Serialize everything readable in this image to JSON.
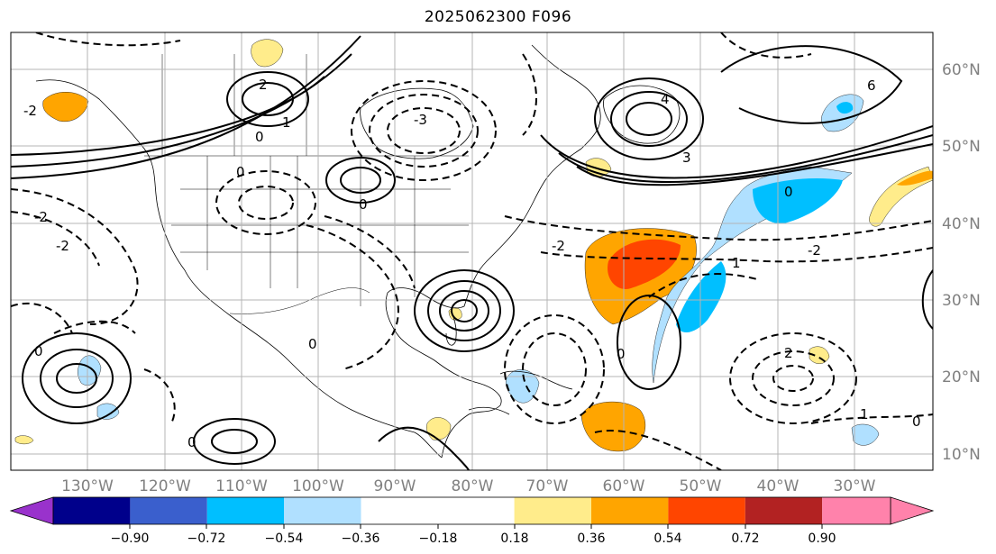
{
  "title": "2025062300 F096",
  "map": {
    "projection": "PlateCarree",
    "lon_range": [
      -140,
      5
    ],
    "lat_range": [
      7,
      65
    ],
    "gridlines": true
  },
  "axes": {
    "lon_ticks": [
      "130°W",
      "120°W",
      "110°W",
      "100°W",
      "90°W",
      "80°W",
      "70°W",
      "60°W",
      "50°W",
      "40°W",
      "30°W"
    ],
    "lat_ticks": [
      "60°N",
      "50°N",
      "40°N",
      "30°N",
      "20°N",
      "10°N"
    ]
  },
  "colorbar": {
    "labels": [
      "−0.90",
      "−0.72",
      "−0.54",
      "−0.36",
      "−0.18",
      "0.18",
      "0.36",
      "0.54",
      "0.72",
      "0.90"
    ],
    "colors": [
      "#9932cc",
      "#00008b",
      "#3a5fcd",
      "#00bfff",
      "#b0e0ff",
      "#ffffff",
      "#ffec8b",
      "#ffa500",
      "#ff4500",
      "#b22222",
      "#ff82ab"
    ],
    "extend": "both"
  },
  "contour_labels": [
    "-2",
    "-1",
    "0",
    "1",
    "2",
    "3",
    "4",
    "6",
    "-3",
    "0",
    "2",
    "1"
  ]
}
